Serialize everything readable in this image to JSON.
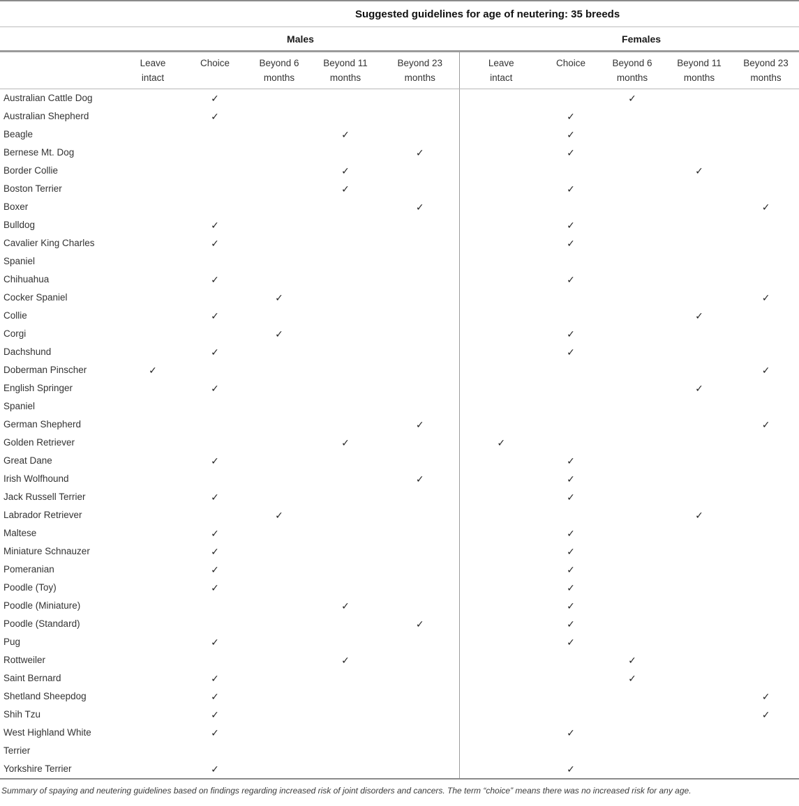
{
  "table": {
    "title": "Suggested guidelines for age of neutering: 35 breeds",
    "group_headers": {
      "males": "Males",
      "females": "Females"
    },
    "column_headers": [
      "Leave\nintact",
      "Choice",
      "Beyond 6\nmonths",
      "Beyond 11\nmonths",
      "Beyond 23\nmonths"
    ],
    "column_keys": [
      "leave",
      "choice",
      "b6",
      "b11",
      "b23"
    ],
    "check_mark": "✓",
    "rows": [
      {
        "breed": "Australian Cattle Dog",
        "males": "choice",
        "females": "b6"
      },
      {
        "breed": "Australian Shepherd",
        "males": "choice",
        "females": "choice"
      },
      {
        "breed": "Beagle",
        "males": "b11",
        "females": "choice"
      },
      {
        "breed": "Bernese Mt. Dog",
        "males": "b23",
        "females": "choice"
      },
      {
        "breed": "Border Collie",
        "males": "b11",
        "females": "b11"
      },
      {
        "breed": "Boston Terrier",
        "males": "b11",
        "females": "choice"
      },
      {
        "breed": "Boxer",
        "males": "b23",
        "females": "b23"
      },
      {
        "breed": "Bulldog",
        "males": "choice",
        "females": "choice"
      },
      {
        "breed": "Cavalier King Charles\nSpaniel",
        "males": "choice",
        "females": "choice"
      },
      {
        "breed": "Chihuahua",
        "males": "choice",
        "females": "choice"
      },
      {
        "breed": "Cocker Spaniel",
        "males": "b6",
        "females": "b23"
      },
      {
        "breed": "Collie",
        "males": "choice",
        "females": "b11"
      },
      {
        "breed": "Corgi",
        "males": "b6",
        "females": "choice"
      },
      {
        "breed": "Dachshund",
        "males": "choice",
        "females": "choice"
      },
      {
        "breed": "Doberman Pinscher",
        "males": "leave",
        "females": "b23"
      },
      {
        "breed": "English Springer\nSpaniel",
        "males": "choice",
        "females": "b11"
      },
      {
        "breed": "German Shepherd",
        "males": "b23",
        "females": "b23"
      },
      {
        "breed": "Golden Retriever",
        "males": "b11",
        "females": "leave"
      },
      {
        "breed": "Great Dane",
        "males": "choice",
        "females": "choice"
      },
      {
        "breed": "Irish Wolfhound",
        "males": "b23",
        "females": "choice"
      },
      {
        "breed": "Jack Russell Terrier",
        "males": "choice",
        "females": "choice"
      },
      {
        "breed": "Labrador Retriever",
        "males": "b6",
        "females": "b11"
      },
      {
        "breed": "Maltese",
        "males": "choice",
        "females": "choice"
      },
      {
        "breed": "Miniature Schnauzer",
        "males": "choice",
        "females": "choice"
      },
      {
        "breed": "Pomeranian",
        "males": "choice",
        "females": "choice"
      },
      {
        "breed": "Poodle (Toy)",
        "males": "choice",
        "females": "choice"
      },
      {
        "breed": "Poodle (Miniature)",
        "males": "b11",
        "females": "choice"
      },
      {
        "breed": "Poodle (Standard)",
        "males": "b23",
        "females": "choice"
      },
      {
        "breed": "Pug",
        "males": "choice",
        "females": "choice"
      },
      {
        "breed": "Rottweiler",
        "males": "b11",
        "females": "b6"
      },
      {
        "breed": "Saint Bernard",
        "males": "choice",
        "females": "b6"
      },
      {
        "breed": "Shetland Sheepdog",
        "males": "choice",
        "females": "b23"
      },
      {
        "breed": "Shih Tzu",
        "males": "choice",
        "females": "b23"
      },
      {
        "breed": "West Highland White\nTerrier",
        "males": "choice",
        "females": "choice"
      },
      {
        "breed": "Yorkshire Terrier",
        "males": "choice",
        "females": "choice"
      }
    ],
    "footnote": "Summary of spaying and neutering guidelines based on findings regarding increased risk of joint disorders and cancers. The term “choice” means there was no increased risk for any age."
  },
  "colors": {
    "rule_heavy": "#8a8a8a",
    "rule_light": "#bcbcbc",
    "text": "#333333"
  }
}
